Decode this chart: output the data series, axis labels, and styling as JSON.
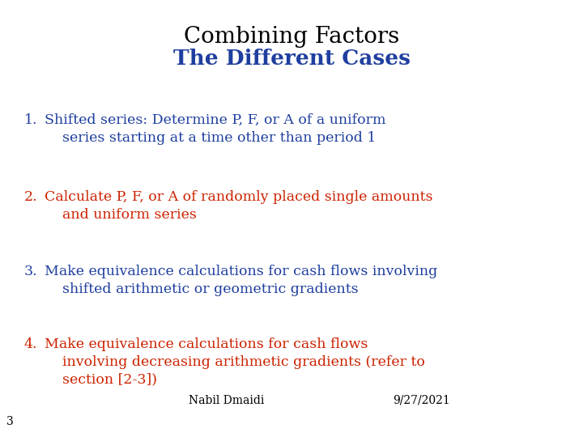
{
  "title1": "Combining Factors",
  "title2": "The Different Cases",
  "title1_color": "#000000",
  "title2_color": "#1F3F9F",
  "title1_fontsize": 20,
  "title2_fontsize": 19,
  "body_fontsize": 12.5,
  "items": [
    {
      "number": "1.",
      "text": "Shifted series: Determine P, F, or A of a uniform\n    series starting at a time other than period 1",
      "color": "#1F3F9F"
    },
    {
      "number": "2.",
      "text": "Calculate P, F, or A of randomly placed single amounts\n    and uniform series",
      "color": "#CC2200"
    },
    {
      "number": "3.",
      "text": "Make equivalence calculations for cash flows involving\n    shifted arithmetic or geometric gradients",
      "color": "#1F3F9F"
    },
    {
      "number": "4.",
      "text": "Make equivalence calculations for cash flows\n    involving decreasing arithmetic gradients (refer to\n    section [2-3])",
      "color": "#CC2200"
    }
  ],
  "footer_left": "Nabil Dmaidi",
  "footer_right": "9/27/2021",
  "footer_fontsize": 10,
  "page_number": "3",
  "background_color": "#FFFFFF"
}
